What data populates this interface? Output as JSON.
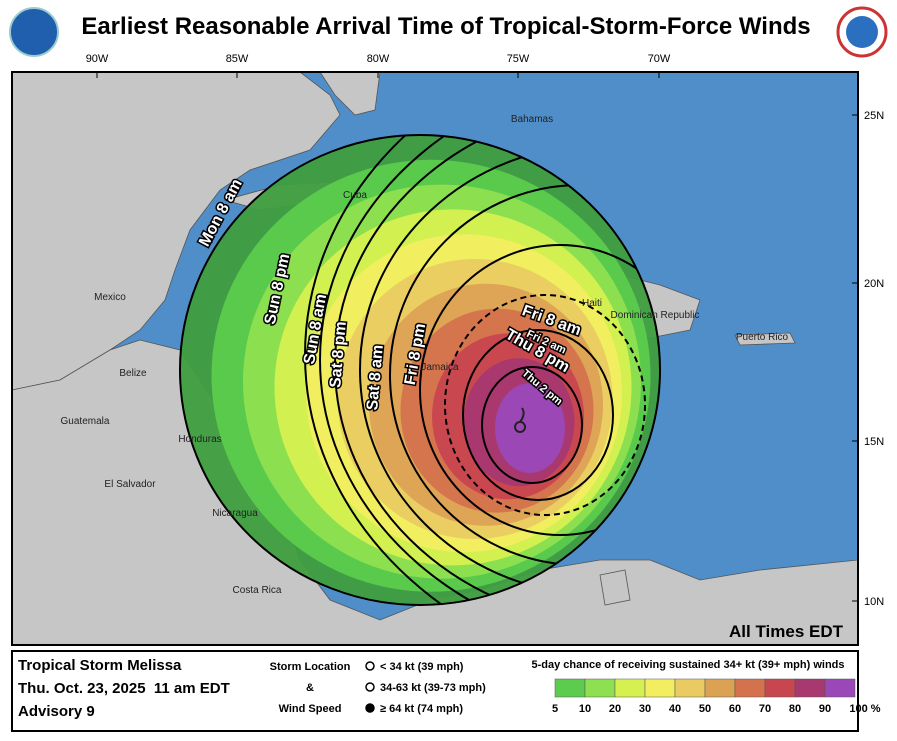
{
  "header": {
    "title": "Earliest Reasonable Arrival Time of Tropical-Storm-Force Winds"
  },
  "map": {
    "longitudes": [
      "90W",
      "85W",
      "80W",
      "75W",
      "70W"
    ],
    "latitudes": [
      "25N",
      "20N",
      "15N",
      "10N"
    ],
    "places": [
      "Bahamas",
      "Cuba",
      "Mexico",
      "Belize",
      "Guatemala",
      "Honduras",
      "El Salvador",
      "Nicaragua",
      "Costa Rica",
      "Jamaica",
      "Haiti",
      "Dominican Republic",
      "Puerto Rico"
    ],
    "arrival_labels": [
      "Mon 8 am",
      "Sun 8 pm",
      "Sun 8 am",
      "Sat 8 pm",
      "Sat 8 am",
      "Fri 8 pm",
      "Fri 8 am",
      "Fri 2 am",
      "Thu 8 pm",
      "Thu 2 pm"
    ],
    "timezone_note": "All Times EDT"
  },
  "footer": {
    "storm": "Tropical Storm Melissa",
    "date": "Thu. Oct. 23, 2025  11 am EDT",
    "advisory": "Advisory 9",
    "key_title": [
      "Storm Location",
      "&",
      "Wind Speed"
    ],
    "key_items": [
      "< 34 kt (39 mph)",
      "34-63 kt (39-73 mph)",
      "≥ 64 kt (74 mph)"
    ]
  },
  "legend": {
    "title": "5-day chance of receiving sustained 34+ kt (39+ mph) winds",
    "colors": [
      "#3f9e3f",
      "#5ccc4e",
      "#8fe050",
      "#d6f050",
      "#f2ee60",
      "#eacb62",
      "#dca254",
      "#d4724e",
      "#c84650",
      "#a83870",
      "#9a48b8"
    ],
    "labels": [
      "5",
      "10",
      "20",
      "30",
      "40",
      "50",
      "60",
      "70",
      "80",
      "90",
      "100 %"
    ]
  }
}
